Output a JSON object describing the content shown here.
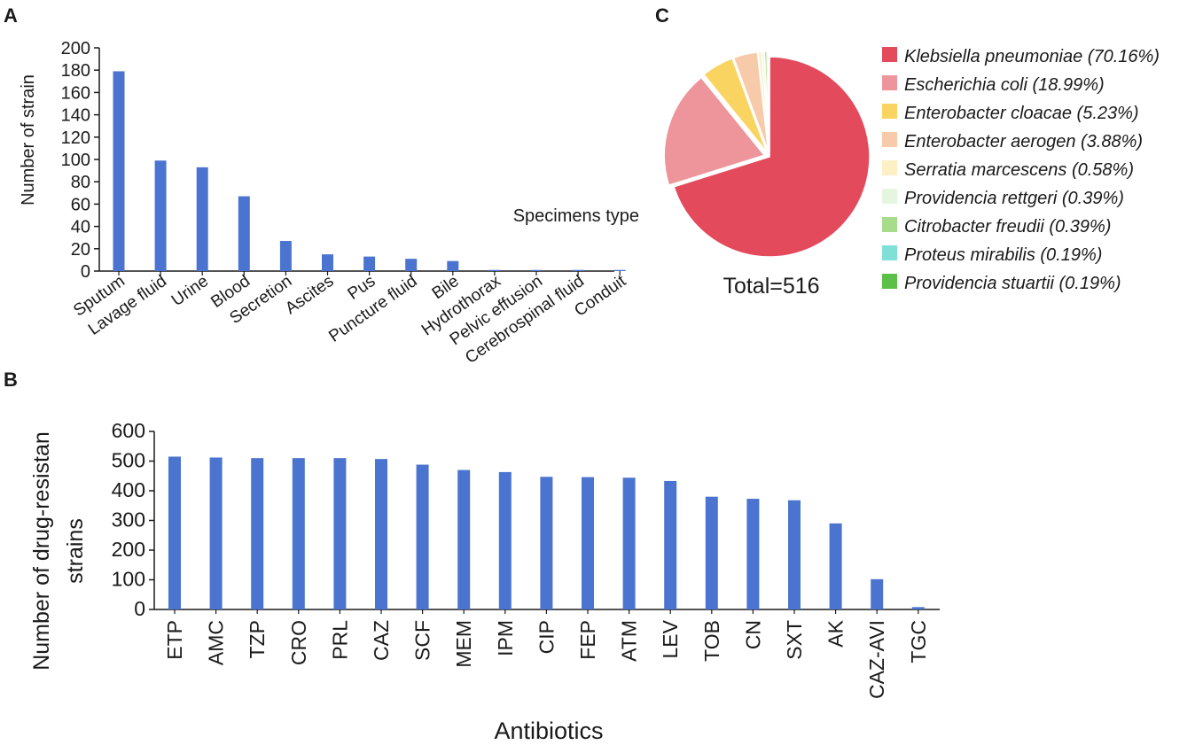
{
  "figure": {
    "colors": {
      "bar": "#4a74cf",
      "axis": "#1a1a1a"
    }
  },
  "chart_data": [
    {
      "panel": "A",
      "type": "bar",
      "categories": [
        "Sputum",
        "Lavage fluid",
        "Urine",
        "Blood",
        "Secretion",
        "Ascites",
        "Pus",
        "Puncture fluid",
        "Bile",
        "Hydrothorax",
        "Pelvic effusion",
        "Cerebrospinal fluid",
        "Conduit"
      ],
      "values": [
        179,
        99,
        93,
        67,
        27,
        15,
        13,
        11,
        9,
        1,
        1,
        1,
        1
      ],
      "ylabel": "Number of strain",
      "xlabel": "Specimens type",
      "ylim": [
        0,
        200
      ],
      "yticks": [
        0,
        20,
        40,
        60,
        80,
        100,
        120,
        140,
        160,
        180,
        200
      ]
    },
    {
      "panel": "B",
      "type": "bar",
      "categories": [
        "ETP",
        "AMC",
        "TZP",
        "CRO",
        "PRL",
        "CAZ",
        "SCF",
        "MEM",
        "IPM",
        "CIP",
        "FEP",
        "ATM",
        "LEV",
        "TOB",
        "CN",
        "SXT",
        "AK",
        "CAZ-AVI",
        "TGC"
      ],
      "values": [
        515,
        512,
        510,
        510,
        510,
        507,
        488,
        470,
        463,
        447,
        446,
        444,
        433,
        380,
        373,
        368,
        290,
        102,
        8
      ],
      "ylabel": "Number of drug-resistan strains",
      "xlabel": "Antibiotics",
      "ylim": [
        0,
        600
      ],
      "yticks": [
        0,
        100,
        200,
        300,
        400,
        500,
        600
      ]
    },
    {
      "panel": "C",
      "type": "pie",
      "labels": [
        "Klebsiella pneumoniae (70.16%)",
        "Escherichia coli (18.99%)",
        "Enterobacter cloacae (5.23%)",
        "Enterobacter aerogen (3.88%)",
        "Serratia marcescens (0.58%)",
        "Providencia rettgeri (0.39%)",
        "Citrobacter freudii (0.39%)",
        "Proteus mirabilis (0.19%)",
        "Providencia stuartii (0.19%)"
      ],
      "values": [
        70.16,
        18.99,
        5.23,
        3.88,
        0.58,
        0.39,
        0.39,
        0.19,
        0.19
      ],
      "colors": [
        "#e34b5d",
        "#ee959b",
        "#fad460",
        "#f7cbaa",
        "#fdf0c4",
        "#e6f5df",
        "#a7dc8c",
        "#7fe0d8",
        "#5cbf47"
      ],
      "total_label": "Total=516"
    }
  ]
}
